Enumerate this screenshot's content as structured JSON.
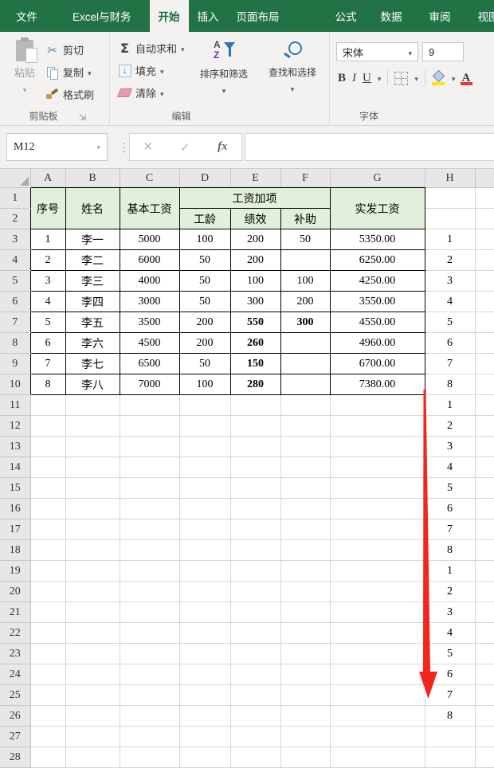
{
  "window": {
    "tabs": [
      {
        "label": "文件",
        "active": false
      },
      {
        "label": "Excel与财务",
        "active": false
      },
      {
        "label": "开始",
        "active": true
      },
      {
        "label": "插入",
        "active": false
      },
      {
        "label": "页面布局",
        "active": false
      },
      {
        "label": "公式",
        "active": false
      },
      {
        "label": "数据",
        "active": false
      },
      {
        "label": "审阅",
        "active": false
      },
      {
        "label": "视图",
        "active": false
      }
    ]
  },
  "ribbon": {
    "clipboard": {
      "paste": "粘贴",
      "cut": "剪切",
      "copy": "复制",
      "format_painter": "格式刷",
      "group_label": "剪贴板"
    },
    "editing": {
      "autosum": "自动求和",
      "fill": "填充",
      "clear": "清除",
      "sort_filter": "排序和筛选",
      "find_select": "查找和选择",
      "group_label": "编辑"
    },
    "font": {
      "font_name": "宋体",
      "font_size": "9",
      "bold": "B",
      "italic": "I",
      "underline": "U",
      "group_label": "字体"
    }
  },
  "formula_bar": {
    "name_box": "M12",
    "cancel_icon": "×",
    "enter_icon": "✓",
    "fx_icon": "fx",
    "value": ""
  },
  "sheet": {
    "column_headers": [
      "A",
      "B",
      "C",
      "D",
      "E",
      "F",
      "G",
      "H"
    ],
    "visible_rows": 27,
    "table": {
      "header": {
        "seq": "序号",
        "name": "姓名",
        "base_salary": "基本工资",
        "additions": "工资加项",
        "seniority": "工龄",
        "performance": "绩效",
        "subsidy": "补助",
        "net_salary": "实发工资"
      },
      "rows": [
        {
          "seq": "1",
          "name": "李一",
          "base": "5000",
          "seniority": "100",
          "performance": "200",
          "subsidy": "50",
          "net": "5350.00",
          "performance_bold": false,
          "subsidy_bold": false
        },
        {
          "seq": "2",
          "name": "李二",
          "base": "6000",
          "seniority": "50",
          "performance": "200",
          "subsidy": "",
          "net": "6250.00",
          "performance_bold": false,
          "subsidy_bold": false
        },
        {
          "seq": "3",
          "name": "李三",
          "base": "4000",
          "seniority": "50",
          "performance": "100",
          "subsidy": "100",
          "net": "4250.00",
          "performance_bold": false,
          "subsidy_bold": false
        },
        {
          "seq": "4",
          "name": "李四",
          "base": "3000",
          "seniority": "50",
          "performance": "300",
          "subsidy": "200",
          "net": "3550.00",
          "performance_bold": false,
          "subsidy_bold": false
        },
        {
          "seq": "5",
          "name": "李五",
          "base": "3500",
          "seniority": "200",
          "performance": "550",
          "subsidy": "300",
          "net": "4550.00",
          "performance_bold": true,
          "subsidy_bold": true
        },
        {
          "seq": "6",
          "name": "李六",
          "base": "4500",
          "seniority": "200",
          "performance": "260",
          "subsidy": "",
          "net": "4960.00",
          "performance_bold": true,
          "subsidy_bold": false
        },
        {
          "seq": "7",
          "name": "李七",
          "base": "6500",
          "seniority": "50",
          "performance": "150",
          "subsidy": "",
          "net": "6700.00",
          "performance_bold": true,
          "subsidy_bold": false
        },
        {
          "seq": "8",
          "name": "李八",
          "base": "7000",
          "seniority": "100",
          "performance": "280",
          "subsidy": "",
          "net": "7380.00",
          "performance_bold": true,
          "subsidy_bold": false
        }
      ]
    },
    "h_column_values": [
      "1",
      "2",
      "3",
      "4",
      "5",
      "6",
      "7",
      "8",
      "1",
      "2",
      "3",
      "4",
      "5",
      "6",
      "7",
      "8",
      "1",
      "2",
      "3",
      "4",
      "5",
      "6",
      "7",
      "8"
    ]
  },
  "annotation": {
    "arrow": {
      "direction": "down",
      "color": "#f3261b"
    }
  },
  "colors": {
    "brand_green": "#217346",
    "header_fill": "#e2efda",
    "highlight_yellow": "#ffe400",
    "font_color_red": "#e53b2c",
    "eraser_pink": "#e89aa8"
  }
}
